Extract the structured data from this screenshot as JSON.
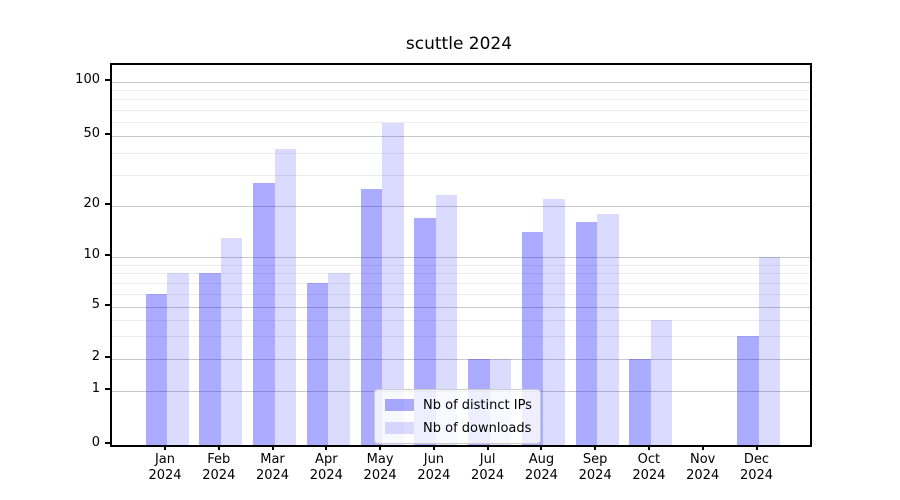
{
  "title": "scuttle 2024",
  "chart_data": {
    "type": "bar",
    "months": [
      "Jan",
      "Feb",
      "Mar",
      "Apr",
      "May",
      "Jun",
      "Jul",
      "Aug",
      "Sep",
      "Oct",
      "Nov",
      "Dec"
    ],
    "year_label": "2024",
    "series": [
      {
        "name": "Nb of distinct IPs",
        "color": "rgba(0,0,255,0.33)",
        "values": [
          6,
          8,
          27,
          7,
          25,
          17,
          2,
          14,
          16,
          2,
          0,
          3
        ]
      },
      {
        "name": "Nb of downloads",
        "color": "rgba(0,0,255,0.14)",
        "values": [
          8,
          13,
          42,
          8,
          59,
          23,
          2,
          22,
          18,
          4,
          0,
          10
        ]
      }
    ],
    "yscale": "symlog",
    "yticks": [
      0,
      1,
      2,
      5,
      10,
      20,
      50,
      100
    ],
    "minor_yticks": [
      3,
      4,
      6,
      7,
      8,
      9,
      30,
      40,
      60,
      70,
      80,
      90
    ],
    "ylim": [
      0,
      100
    ],
    "grid": "on",
    "legend_position": "lower center"
  }
}
